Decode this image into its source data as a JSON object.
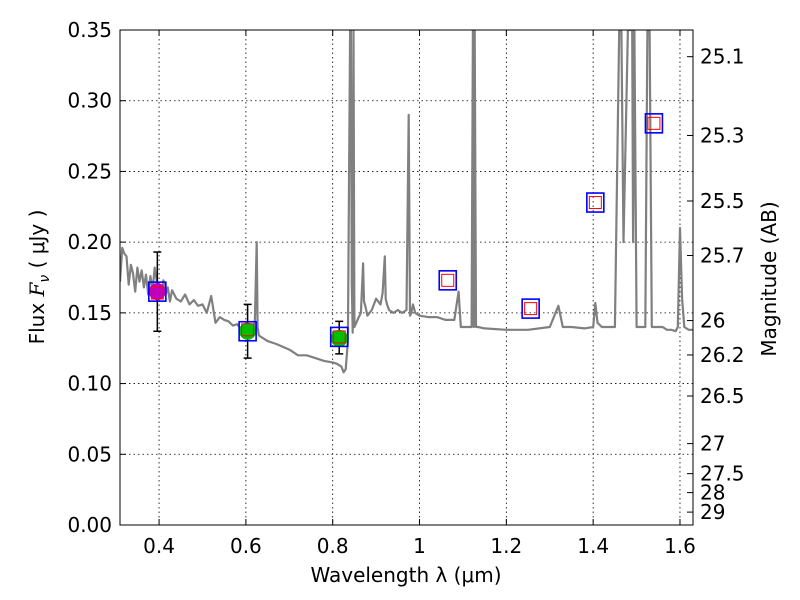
{
  "chart_data": {
    "type": "line",
    "xlabel": "Wavelength  λ (μm)",
    "ylabel_parts": {
      "prefix": "Flux  ",
      "symbol": "F",
      "subscript": "ν",
      "unit": "  ( μJy )"
    },
    "y2label": "Magnitude (AB)",
    "xlim": [
      0.31,
      1.63
    ],
    "ylim": [
      0.0,
      0.35
    ],
    "grid": true,
    "xticks": [
      0.4,
      0.6,
      0.8,
      1.0,
      1.2,
      1.4,
      1.6
    ],
    "xtick_labels": [
      "0.4",
      "0.6",
      "0.8",
      "1",
      "1.2",
      "1.4",
      "1.6"
    ],
    "yticks": [
      0.0,
      0.05,
      0.1,
      0.15,
      0.2,
      0.25,
      0.3,
      0.35
    ],
    "ytick_labels": [
      "0.00",
      "0.05",
      "0.10",
      "0.15",
      "0.20",
      "0.25",
      "0.30",
      "0.35"
    ],
    "y2ticks": [
      25.1,
      25.3,
      25.5,
      25.7,
      26,
      26.2,
      26.5,
      27,
      27.5,
      28,
      29
    ],
    "y2tick_labels": [
      "25.1",
      "25.3",
      "25.5",
      "25.7",
      "26",
      "26.2",
      "26.5",
      "27",
      "27.5",
      "28",
      "29"
    ],
    "series": [
      {
        "name": "model spectrum",
        "kind": "line",
        "color": "#808080",
        "x": [
          0.31,
          0.315,
          0.32,
          0.325,
          0.33,
          0.335,
          0.34,
          0.345,
          0.35,
          0.355,
          0.36,
          0.365,
          0.37,
          0.375,
          0.38,
          0.385,
          0.39,
          0.395,
          0.4,
          0.405,
          0.41,
          0.415,
          0.42,
          0.425,
          0.43,
          0.44,
          0.45,
          0.46,
          0.47,
          0.48,
          0.49,
          0.5,
          0.51,
          0.52,
          0.53,
          0.54,
          0.55,
          0.56,
          0.57,
          0.58,
          0.59,
          0.6,
          0.61,
          0.62,
          0.625,
          0.627,
          0.63,
          0.635,
          0.65,
          0.67,
          0.7,
          0.72,
          0.74,
          0.76,
          0.78,
          0.8,
          0.81,
          0.82,
          0.825,
          0.83,
          0.835,
          0.84,
          0.842,
          0.844,
          0.846,
          0.848,
          0.85,
          0.86,
          0.865,
          0.87,
          0.872,
          0.875,
          0.88,
          0.89,
          0.9,
          0.91,
          0.915,
          0.92,
          0.922,
          0.925,
          0.93,
          0.94,
          0.95,
          0.96,
          0.97,
          0.975,
          0.978,
          0.981,
          0.985,
          0.99,
          1.0,
          1.02,
          1.04,
          1.06,
          1.08,
          1.09,
          1.095,
          1.1,
          1.11,
          1.12,
          1.123,
          1.125,
          1.127,
          1.13,
          1.135,
          1.15,
          1.2,
          1.25,
          1.3,
          1.32,
          1.33,
          1.35,
          1.38,
          1.4,
          1.405,
          1.41,
          1.42,
          1.43,
          1.44,
          1.45,
          1.46,
          1.465,
          1.47,
          1.48,
          1.485,
          1.49,
          1.492,
          1.495,
          1.5,
          1.51,
          1.52,
          1.525,
          1.53,
          1.535,
          1.54,
          1.55,
          1.56,
          1.57,
          1.58,
          1.59,
          1.595,
          1.6,
          1.605,
          1.61,
          1.62,
          1.63
        ],
        "y": [
          0.172,
          0.196,
          0.192,
          0.19,
          0.17,
          0.184,
          0.178,
          0.165,
          0.182,
          0.172,
          0.18,
          0.168,
          0.177,
          0.163,
          0.176,
          0.166,
          0.182,
          0.172,
          0.169,
          0.161,
          0.173,
          0.163,
          0.168,
          0.158,
          0.166,
          0.16,
          0.158,
          0.163,
          0.156,
          0.159,
          0.155,
          0.156,
          0.15,
          0.162,
          0.143,
          0.147,
          0.145,
          0.144,
          0.141,
          0.142,
          0.138,
          0.136,
          0.137,
          0.136,
          0.2,
          0.14,
          0.134,
          0.133,
          0.13,
          0.128,
          0.124,
          0.12,
          0.12,
          0.118,
          0.116,
          0.115,
          0.114,
          0.112,
          0.108,
          0.11,
          0.13,
          0.35,
          0.35,
          0.17,
          0.136,
          0.35,
          0.14,
          0.147,
          0.15,
          0.185,
          0.158,
          0.155,
          0.148,
          0.152,
          0.16,
          0.156,
          0.164,
          0.19,
          0.16,
          0.156,
          0.152,
          0.15,
          0.152,
          0.15,
          0.152,
          0.29,
          0.148,
          0.15,
          0.156,
          0.15,
          0.148,
          0.147,
          0.147,
          0.145,
          0.145,
          0.165,
          0.14,
          0.14,
          0.14,
          0.14,
          0.35,
          0.14,
          0.35,
          0.14,
          0.14,
          0.139,
          0.138,
          0.138,
          0.14,
          0.155,
          0.14,
          0.14,
          0.139,
          0.14,
          0.157,
          0.143,
          0.14,
          0.14,
          0.14,
          0.14,
          0.35,
          0.35,
          0.2,
          0.35,
          0.35,
          0.35,
          0.2,
          0.35,
          0.14,
          0.14,
          0.14,
          0.35,
          0.35,
          0.14,
          0.14,
          0.14,
          0.14,
          0.138,
          0.138,
          0.137,
          0.14,
          0.21,
          0.16,
          0.14,
          0.138,
          0.138
        ]
      },
      {
        "name": "model band fluxes",
        "kind": "open-square",
        "color": "#ff0000",
        "x": [
          0.396,
          0.604,
          0.815,
          1.065,
          1.256,
          1.405,
          1.54
        ],
        "y": [
          0.164,
          0.138,
          0.133,
          0.173,
          0.153,
          0.228,
          0.284
        ]
      },
      {
        "name": "band markers",
        "kind": "open-square-large",
        "color": "#0000ff",
        "x": [
          0.396,
          0.604,
          0.815,
          1.065,
          1.256,
          1.405,
          1.54
        ],
        "y": [
          0.165,
          0.137,
          0.133,
          0.173,
          0.153,
          0.228,
          0.284
        ]
      },
      {
        "name": "observed photometry",
        "kind": "errorbar-circle",
        "x": [
          0.396,
          0.604,
          0.815
        ],
        "y": [
          0.165,
          0.137,
          0.132
        ],
        "yerr_low": [
          0.028,
          0.019,
          0.011
        ],
        "yerr_high": [
          0.028,
          0.019,
          0.012
        ],
        "colors": [
          "#bf00bf",
          "#00c000",
          "#00c000"
        ]
      }
    ]
  }
}
